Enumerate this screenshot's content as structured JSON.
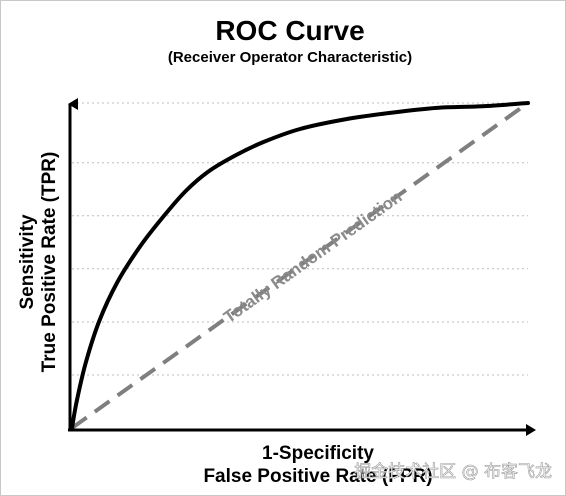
{
  "chart_data": {
    "type": "line",
    "title": "ROC Curve",
    "subtitle": "(Receiver Operator Characteristic)",
    "xlabel_line1": "1-Specificity",
    "xlabel_line2": "False Positive Rate (FPR)",
    "ylabel_line1": "Sensitivity",
    "ylabel_line2": "True Positive Rate (TPR)",
    "xlim": [
      0,
      1
    ],
    "ylim": [
      0,
      1
    ],
    "grid": "horizontal dotted",
    "series": [
      {
        "style": "solid",
        "color": "#000000",
        "x": [
          0,
          0.01,
          0.03,
          0.06,
          0.1,
          0.15,
          0.2,
          0.25,
          0.3,
          0.36,
          0.42,
          0.5,
          0.6,
          0.7,
          0.8,
          0.9,
          1.0
        ],
        "y": [
          0,
          0.08,
          0.2,
          0.33,
          0.45,
          0.56,
          0.65,
          0.73,
          0.79,
          0.84,
          0.88,
          0.92,
          0.95,
          0.97,
          0.985,
          0.99,
          1.0
        ]
      },
      {
        "name": "Totally Random Prediction",
        "style": "dashed",
        "color": "#7f7f7f",
        "x": [
          0,
          1
        ],
        "y": [
          0,
          1
        ]
      }
    ],
    "annotation": "Totally Random Prediction"
  },
  "watermark": "掘金技术社区 @ 布客飞龙"
}
